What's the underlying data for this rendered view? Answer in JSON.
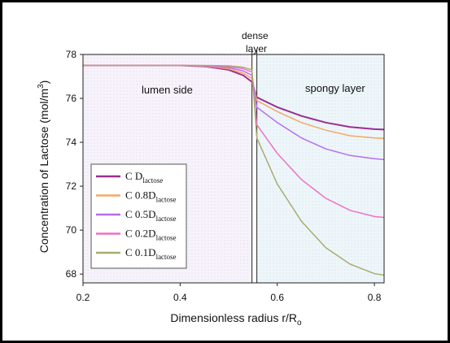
{
  "chart_data": {
    "type": "line",
    "xlabel": "Dimensionless radius r/R",
    "xlabel_sub": "o",
    "ylabel": "Concentration of Lactose (mol/m",
    "ylabel_sup": "3",
    "ylabel_end": ")",
    "xlim": [
      0.2,
      0.82
    ],
    "ylim": [
      67.6,
      78.0
    ],
    "xticks": [
      0.2,
      0.4,
      0.6,
      0.8
    ],
    "yticks": [
      68,
      70,
      72,
      74,
      76,
      78
    ],
    "dense_layer": [
      0.548,
      0.558
    ],
    "regions": [
      {
        "label": "lumen side"
      },
      {
        "label": "dense layer"
      },
      {
        "label": "spongy layer"
      }
    ],
    "series": [
      {
        "name": "C D",
        "sub": "lactose",
        "color": "#9b2f8f",
        "x": [
          0.2,
          0.3,
          0.4,
          0.45,
          0.5,
          0.53,
          0.548,
          0.558,
          0.6,
          0.65,
          0.7,
          0.75,
          0.8,
          0.82
        ],
        "y": [
          77.5,
          77.5,
          77.5,
          77.46,
          77.3,
          77.05,
          76.75,
          76.05,
          75.6,
          75.2,
          74.9,
          74.7,
          74.6,
          74.58
        ]
      },
      {
        "name": "C 0.8D",
        "sub": "lactose",
        "color": "#f5a861",
        "x": [
          0.2,
          0.3,
          0.4,
          0.45,
          0.5,
          0.53,
          0.548,
          0.558,
          0.6,
          0.65,
          0.7,
          0.75,
          0.8,
          0.82
        ],
        "y": [
          77.5,
          77.5,
          77.5,
          77.47,
          77.35,
          77.15,
          76.9,
          75.9,
          75.4,
          74.9,
          74.55,
          74.3,
          74.2,
          74.18
        ]
      },
      {
        "name": "C 0.5D",
        "sub": "lactose",
        "color": "#b86cf0",
        "x": [
          0.2,
          0.3,
          0.4,
          0.45,
          0.5,
          0.53,
          0.548,
          0.558,
          0.6,
          0.65,
          0.7,
          0.75,
          0.8,
          0.82
        ],
        "y": [
          77.5,
          77.5,
          77.5,
          77.48,
          77.4,
          77.25,
          77.05,
          75.6,
          74.9,
          74.2,
          73.7,
          73.4,
          73.25,
          73.22
        ]
      },
      {
        "name": "C 0.2D",
        "sub": "lactose",
        "color": "#f06ec8",
        "x": [
          0.2,
          0.3,
          0.4,
          0.45,
          0.5,
          0.53,
          0.548,
          0.558,
          0.6,
          0.65,
          0.7,
          0.75,
          0.8,
          0.82
        ],
        "y": [
          77.5,
          77.5,
          77.5,
          77.49,
          77.45,
          77.35,
          77.2,
          74.8,
          73.5,
          72.3,
          71.45,
          70.9,
          70.62,
          70.58
        ]
      },
      {
        "name": "C 0.1D",
        "sub": "lactose",
        "color": "#a8ad6c",
        "x": [
          0.2,
          0.3,
          0.4,
          0.45,
          0.5,
          0.53,
          0.548,
          0.558,
          0.6,
          0.65,
          0.7,
          0.75,
          0.8,
          0.82
        ],
        "y": [
          77.5,
          77.5,
          77.5,
          77.5,
          77.48,
          77.42,
          77.3,
          74.2,
          72.1,
          70.4,
          69.2,
          68.45,
          68.02,
          67.95
        ]
      }
    ]
  }
}
